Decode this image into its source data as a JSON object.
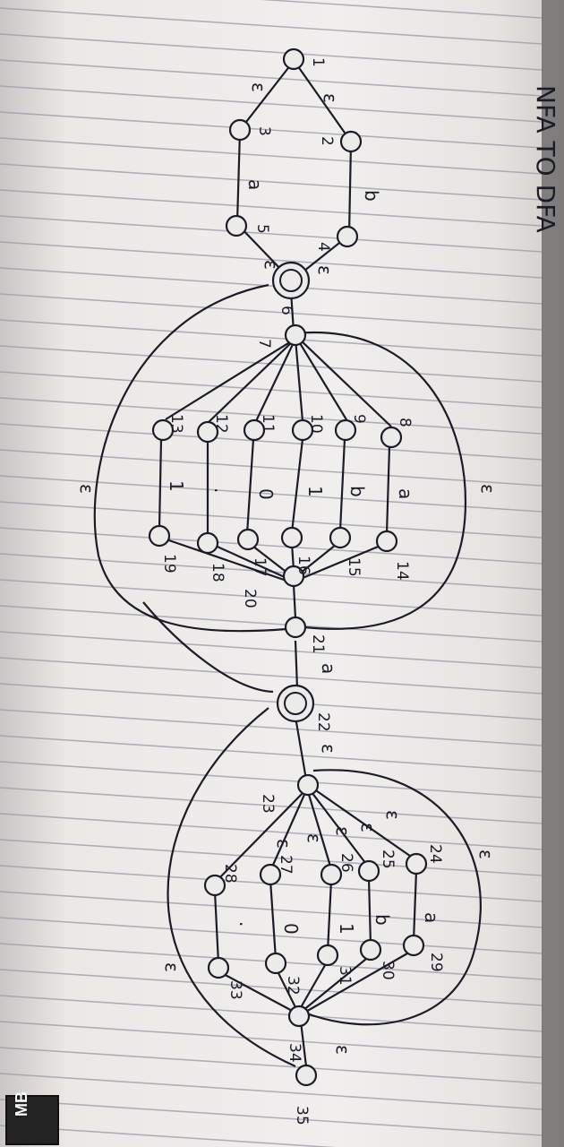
{
  "page": {
    "title": "NFA TO DFA",
    "brand": "MB"
  },
  "diagram": {
    "state_labels": [
      "1",
      "2",
      "3",
      "4",
      "5",
      "6",
      "7",
      "8",
      "9",
      "10",
      "11",
      "12",
      "13",
      "14",
      "15",
      "16",
      "17",
      "18",
      "19",
      "20",
      "21",
      "22",
      "23",
      "24",
      "25",
      "26",
      "27",
      "28",
      "29",
      "30",
      "31",
      "32",
      "33",
      "34",
      "35"
    ],
    "epsilon": "ε",
    "symbols": {
      "a": "a",
      "b": "b",
      "one": "1",
      "zero": "0",
      "dot": "."
    },
    "mid_label": "a"
  }
}
